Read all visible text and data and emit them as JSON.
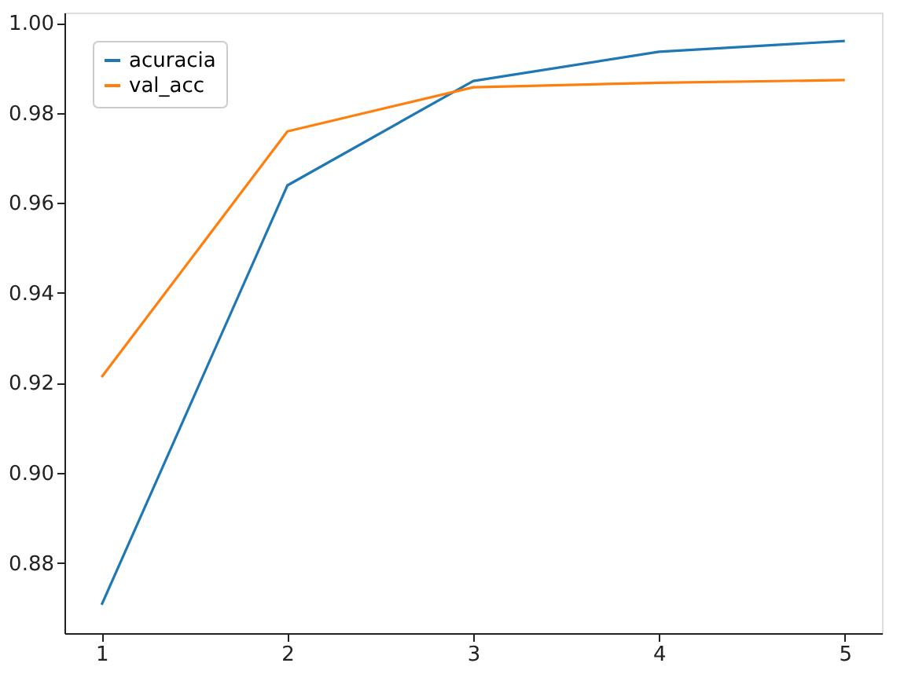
{
  "chart_data": {
    "type": "line",
    "x": [
      1,
      2,
      3,
      4,
      5
    ],
    "series": [
      {
        "name": "acuracia",
        "color": "#1f77b4",
        "values": [
          0.8707,
          0.9639,
          0.9871,
          0.9936,
          0.996
        ]
      },
      {
        "name": "val_acc",
        "color": "#ff7f0e",
        "values": [
          0.9213,
          0.9759,
          0.9857,
          0.9867,
          0.9873
        ]
      }
    ],
    "xlim": [
      0.8,
      5.2
    ],
    "xticks": [
      1,
      2,
      3,
      4,
      5
    ],
    "ylim": [
      0.8644,
      1.0023
    ],
    "yticks": [
      0.88,
      {
        "value": 0.9,
        "label": "0.90"
      },
      0.92,
      0.94,
      0.96,
      0.98,
      {
        "value": 1,
        "label": "1.00"
      }
    ],
    "legend": "top left",
    "grid": false,
    "marker": "none",
    "line_style": "solid"
  }
}
